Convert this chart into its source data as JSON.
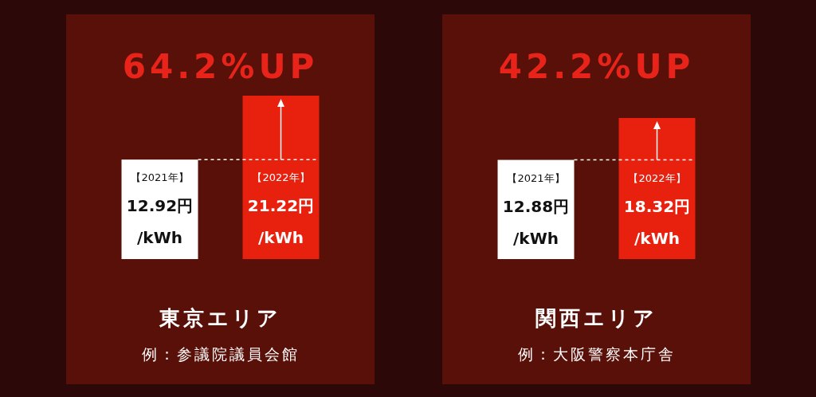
{
  "chart_data": [
    {
      "type": "bar",
      "title": "64.2%UP",
      "categories": [
        "【2021年】",
        "【2022年】"
      ],
      "values": [
        12.92,
        21.22
      ],
      "colors": [
        "#ffffff",
        "#e8210f"
      ],
      "value_labels": [
        "12.92円\n/kWh",
        "21.22円\n/kWh"
      ],
      "xlabel": "東京エリア",
      "annotations": [
        "例：参議院議員会館"
      ],
      "ref_lines": [
        {
          "axis": "y",
          "value": 12.92,
          "color": "#ffffff",
          "line_style": "dashed"
        }
      ]
    },
    {
      "type": "bar",
      "title": "42.2%UP",
      "categories": [
        "【2021年】",
        "【2022年】"
      ],
      "values": [
        12.88,
        18.32
      ],
      "colors": [
        "#ffffff",
        "#e8210f"
      ],
      "value_labels": [
        "12.88円\n/kWh",
        "18.32円\n/kWh"
      ],
      "xlabel": "関西エリア",
      "annotations": [
        "例：大阪警察本庁舎"
      ],
      "ref_lines": [
        {
          "axis": "y",
          "value": 12.88,
          "color": "#ffffff",
          "line_style": "dashed"
        }
      ]
    }
  ]
}
